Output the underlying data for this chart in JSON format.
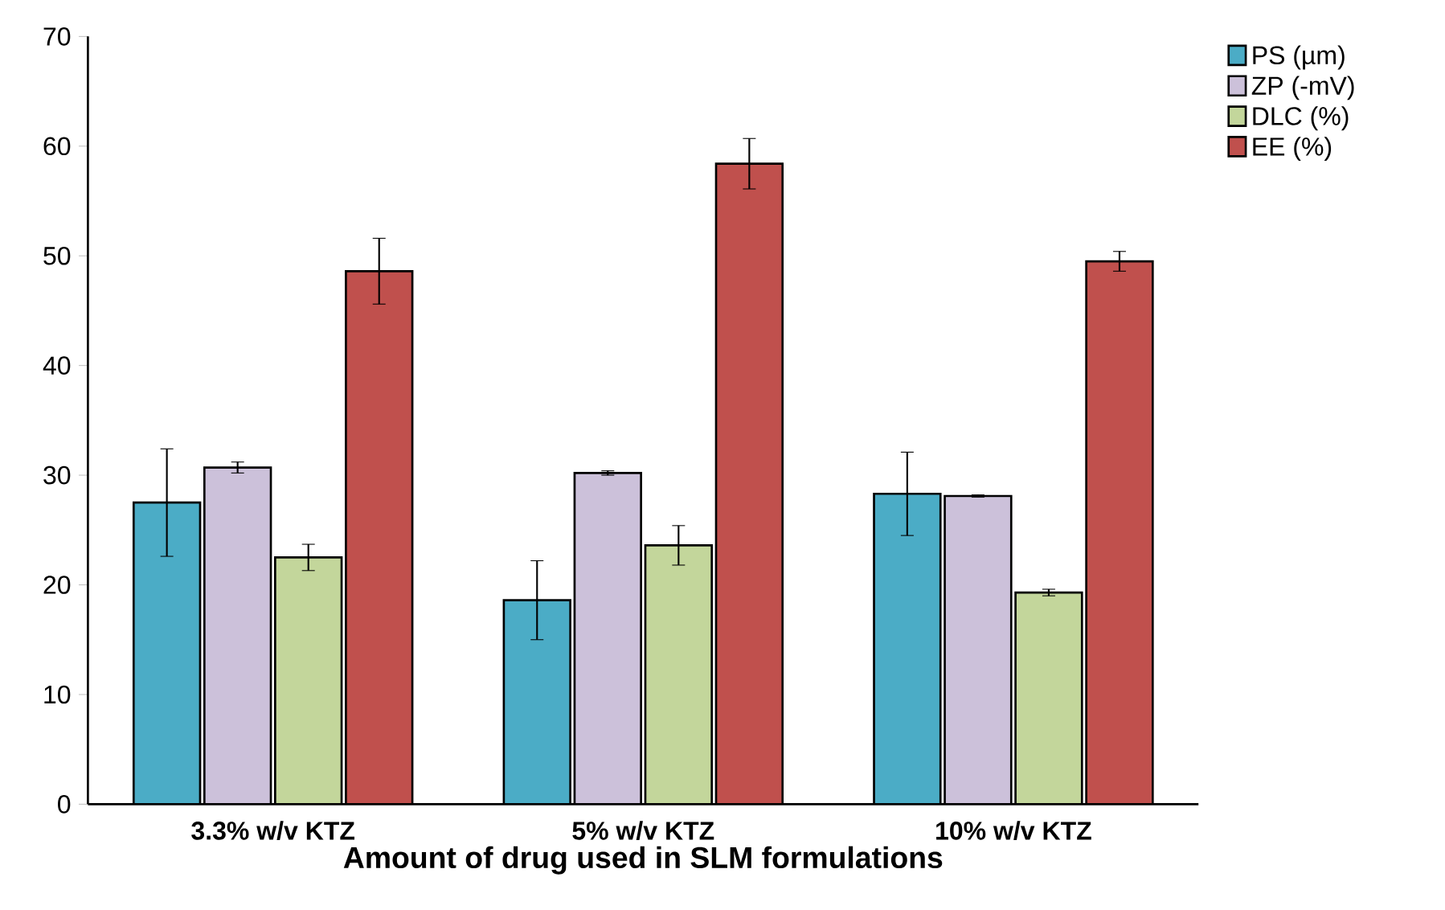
{
  "chart_data": {
    "type": "bar",
    "xlabel": "Amount of drug used in SLM formulations",
    "categories": [
      "3.3% w/v  KTZ",
      "5% w/v KTZ",
      "10% w/v KTZ"
    ],
    "series": [
      {
        "name": "PS (µm)",
        "color": "#4bacc6",
        "values": [
          27.5,
          18.6,
          28.3
        ],
        "errors": [
          4.9,
          3.6,
          3.8
        ]
      },
      {
        "name": "ZP (-mV)",
        "color": "#ccc1da",
        "values": [
          30.7,
          30.2,
          28.1
        ],
        "errors": [
          0.5,
          0.2,
          0.1
        ]
      },
      {
        "name": "DLC (%)",
        "color": "#c3d69b",
        "values": [
          22.5,
          23.6,
          19.3
        ],
        "errors": [
          1.2,
          1.8,
          0.3
        ]
      },
      {
        "name": "EE (%)",
        "color": "#c0504d",
        "values": [
          48.6,
          58.4,
          49.5
        ],
        "errors": [
          3,
          2.3,
          0.9
        ]
      }
    ],
    "ylim": [
      0,
      70
    ],
    "yticks": [
      0,
      10,
      20,
      30,
      40,
      50,
      60,
      70
    ],
    "legend": "right"
  }
}
